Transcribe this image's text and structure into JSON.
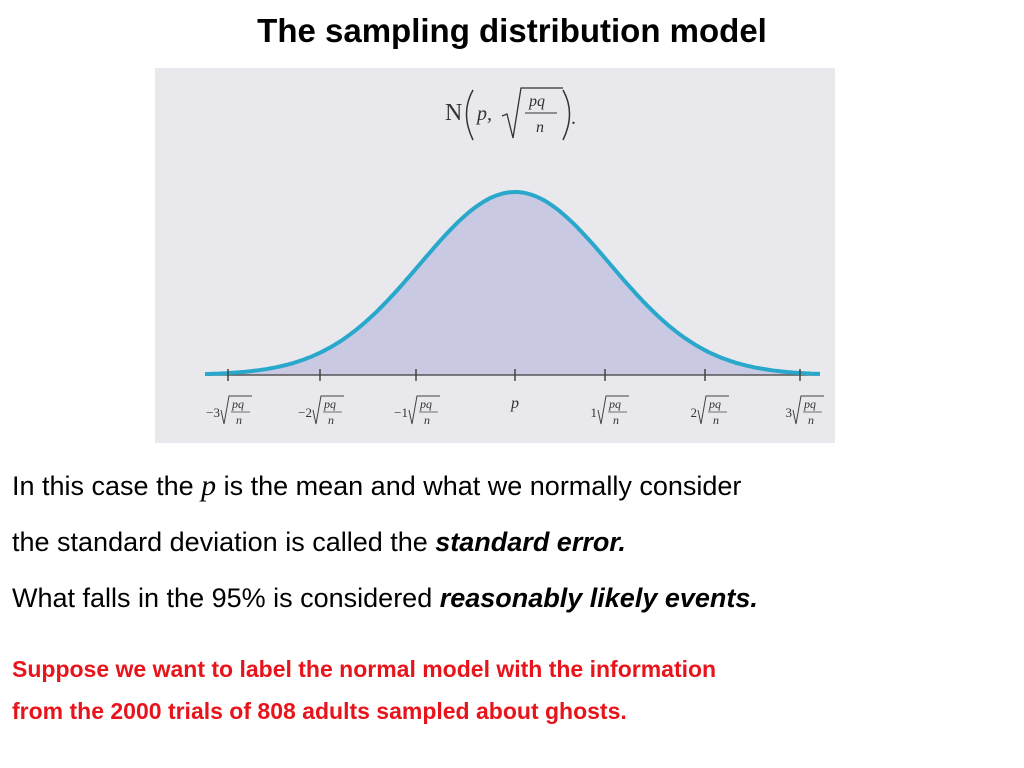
{
  "header": {
    "title": "The sampling distribution model"
  },
  "figure": {
    "formula": {
      "symbol": "N",
      "mean": "p,",
      "numerator": "pq",
      "denominator": "n",
      "end": "."
    },
    "ticks": [
      {
        "coef": "−3",
        "num": "pq",
        "den": "n"
      },
      {
        "coef": "−2",
        "num": "pq",
        "den": "n"
      },
      {
        "coef": "−1",
        "num": "pq",
        "den": "n"
      },
      {
        "center": "p"
      },
      {
        "coef": "1",
        "num": "pq",
        "den": "n"
      },
      {
        "coef": "2",
        "num": "pq",
        "den": "n"
      },
      {
        "coef": "3",
        "num": "pq",
        "den": "n"
      }
    ]
  },
  "body": {
    "paragraph1": [
      "In this case the ",
      "p",
      " is the mean and what we normally consider",
      "the standard deviation is called the ",
      "standard error."
    ],
    "paragraph2": [
      "What falls in the 95% is considered ",
      "reasonably likely events."
    ],
    "note": [
      "Suppose we want to label the normal model with the information",
      "from the 2000 trials of 808 adults sampled about ghosts."
    ]
  }
}
